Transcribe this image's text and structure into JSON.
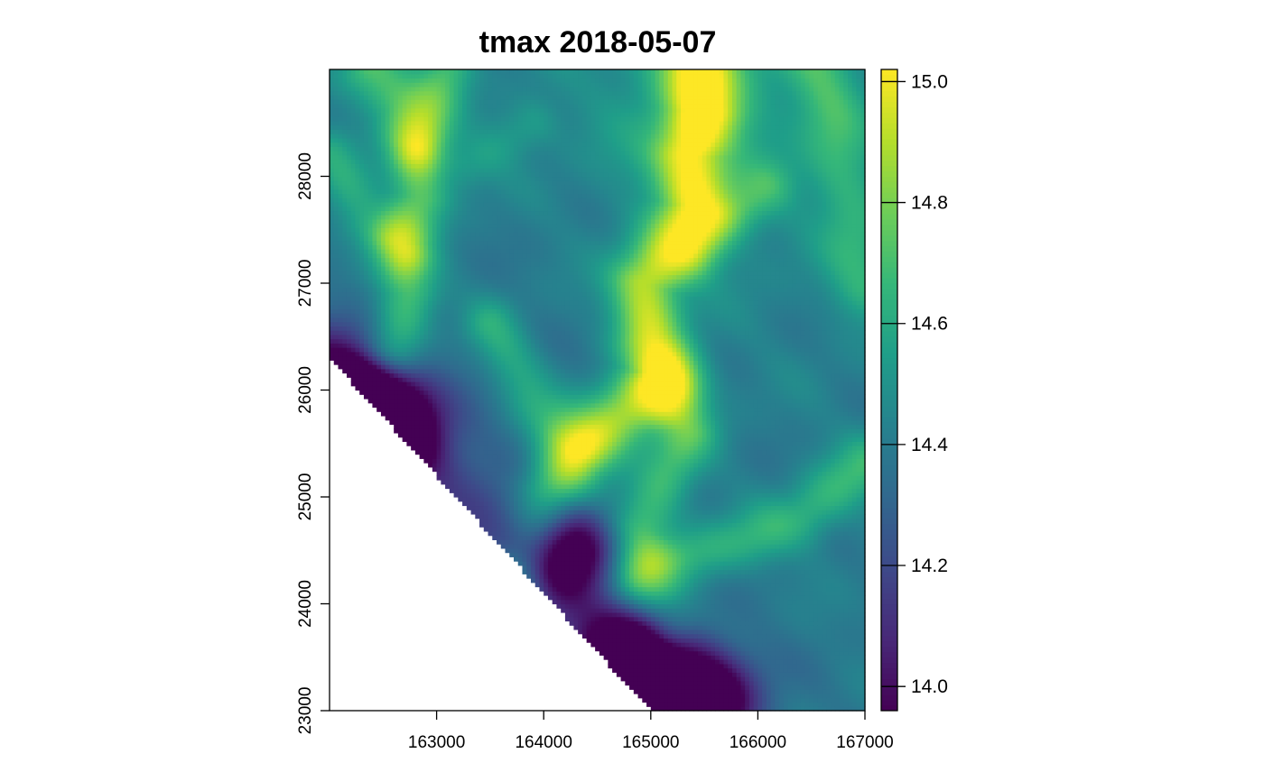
{
  "chart_data": {
    "type": "heatmap",
    "title": "tmax 2018-05-07",
    "xlabel": "",
    "ylabel": "",
    "xlim": [
      162000,
      167000
    ],
    "ylim": [
      23000,
      29000
    ],
    "x_ticks": [
      163000,
      164000,
      165000,
      166000,
      167000
    ],
    "y_ticks": [
      23000,
      24000,
      25000,
      26000,
      27000,
      28000
    ],
    "colorbar": {
      "range": [
        13.96,
        15.02
      ],
      "ticks": [
        "14.0",
        "14.2",
        "14.4",
        "14.6",
        "14.8",
        "15.0"
      ],
      "palette": "viridis",
      "placement": "right"
    },
    "grid": false,
    "field": {
      "base_value": 14.45,
      "high_region": {
        "x": 165450,
        "y": 28800,
        "value": 15.0
      },
      "low_spots": [
        {
          "x": 162200,
          "y": 25900,
          "value": 14.0
        },
        {
          "x": 162550,
          "y": 25600,
          "value": 13.98
        },
        {
          "x": 164100,
          "y": 24500,
          "value": 14.0
        },
        {
          "x": 164850,
          "y": 23500,
          "value": 13.97
        },
        {
          "x": 165500,
          "y": 23100,
          "value": 14.0
        }
      ],
      "missing_region": "south-west of the line from (162000, 26300) to (165000, 23000)"
    }
  },
  "colors": {
    "viridis": [
      "#440154",
      "#482878",
      "#3e4989",
      "#31688e",
      "#26828e",
      "#1f9e89",
      "#35b779",
      "#6ece58",
      "#b5de2b",
      "#fde725"
    ],
    "axis": "#000000",
    "background": "#ffffff"
  }
}
